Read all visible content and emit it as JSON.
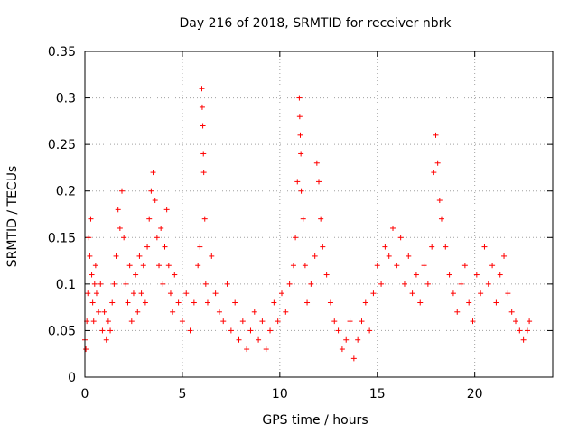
{
  "chart_data": {
    "type": "scatter",
    "title": "Day 216 of 2018, SRMTID for receiver nbrk",
    "xlabel": "GPS time / hours",
    "ylabel": "SRMTID / TECUs",
    "xlim": [
      0,
      24
    ],
    "ylim": [
      0,
      0.35
    ],
    "x_ticks": [
      0,
      5,
      10,
      15,
      20
    ],
    "y_ticks": [
      0,
      0.05,
      0.1,
      0.15,
      0.2,
      0.25,
      0.3,
      0.35
    ],
    "x_tick_labels": [
      "0",
      "5",
      "10",
      "15",
      "20"
    ],
    "y_tick_labels": [
      "0",
      "0.05",
      "0.1",
      "0.15",
      "0.2",
      "0.25",
      "0.3",
      "0.35"
    ],
    "grid": true,
    "marker": "plus",
    "color": "#ff0000",
    "series": [
      {
        "name": "SRMTID",
        "points": [
          [
            0.0,
            0.04
          ],
          [
            0.05,
            0.03
          ],
          [
            0.1,
            0.06
          ],
          [
            0.15,
            0.09
          ],
          [
            0.2,
            0.15
          ],
          [
            0.25,
            0.13
          ],
          [
            0.3,
            0.17
          ],
          [
            0.35,
            0.11
          ],
          [
            0.4,
            0.08
          ],
          [
            0.45,
            0.06
          ],
          [
            0.5,
            0.1
          ],
          [
            0.55,
            0.12
          ],
          [
            0.6,
            0.09
          ],
          [
            0.7,
            0.07
          ],
          [
            0.8,
            0.1
          ],
          [
            0.9,
            0.05
          ],
          [
            1.0,
            0.07
          ],
          [
            1.1,
            0.04
          ],
          [
            1.2,
            0.06
          ],
          [
            1.3,
            0.05
          ],
          [
            1.4,
            0.08
          ],
          [
            1.5,
            0.1
          ],
          [
            1.6,
            0.13
          ],
          [
            1.7,
            0.18
          ],
          [
            1.8,
            0.16
          ],
          [
            1.9,
            0.2
          ],
          [
            2.0,
            0.15
          ],
          [
            2.1,
            0.1
          ],
          [
            2.2,
            0.08
          ],
          [
            2.3,
            0.12
          ],
          [
            2.4,
            0.06
          ],
          [
            2.5,
            0.09
          ],
          [
            2.6,
            0.11
          ],
          [
            2.7,
            0.07
          ],
          [
            2.8,
            0.13
          ],
          [
            2.9,
            0.09
          ],
          [
            3.0,
            0.12
          ],
          [
            3.1,
            0.08
          ],
          [
            3.2,
            0.14
          ],
          [
            3.3,
            0.17
          ],
          [
            3.4,
            0.2
          ],
          [
            3.5,
            0.22
          ],
          [
            3.6,
            0.19
          ],
          [
            3.7,
            0.15
          ],
          [
            3.8,
            0.12
          ],
          [
            3.9,
            0.16
          ],
          [
            4.0,
            0.1
          ],
          [
            4.1,
            0.14
          ],
          [
            4.2,
            0.18
          ],
          [
            4.3,
            0.12
          ],
          [
            4.4,
            0.09
          ],
          [
            4.5,
            0.07
          ],
          [
            4.6,
            0.11
          ],
          [
            4.8,
            0.08
          ],
          [
            5.0,
            0.06
          ],
          [
            5.2,
            0.09
          ],
          [
            5.4,
            0.05
          ],
          [
            5.6,
            0.08
          ],
          [
            5.8,
            0.12
          ],
          [
            5.9,
            0.14
          ],
          [
            6.0,
            0.31
          ],
          [
            6.02,
            0.29
          ],
          [
            6.05,
            0.27
          ],
          [
            6.08,
            0.24
          ],
          [
            6.1,
            0.22
          ],
          [
            6.15,
            0.17
          ],
          [
            6.2,
            0.1
          ],
          [
            6.3,
            0.08
          ],
          [
            6.5,
            0.13
          ],
          [
            6.7,
            0.09
          ],
          [
            6.9,
            0.07
          ],
          [
            7.1,
            0.06
          ],
          [
            7.3,
            0.1
          ],
          [
            7.5,
            0.05
          ],
          [
            7.7,
            0.08
          ],
          [
            7.9,
            0.04
          ],
          [
            8.1,
            0.06
          ],
          [
            8.3,
            0.03
          ],
          [
            8.5,
            0.05
          ],
          [
            8.7,
            0.07
          ],
          [
            8.9,
            0.04
          ],
          [
            9.1,
            0.06
          ],
          [
            9.3,
            0.03
          ],
          [
            9.5,
            0.05
          ],
          [
            9.7,
            0.08
          ],
          [
            9.9,
            0.06
          ],
          [
            10.1,
            0.09
          ],
          [
            10.3,
            0.07
          ],
          [
            10.5,
            0.1
          ],
          [
            10.7,
            0.12
          ],
          [
            10.8,
            0.15
          ],
          [
            10.9,
            0.21
          ],
          [
            11.0,
            0.3
          ],
          [
            11.02,
            0.28
          ],
          [
            11.05,
            0.26
          ],
          [
            11.08,
            0.24
          ],
          [
            11.1,
            0.2
          ],
          [
            11.2,
            0.17
          ],
          [
            11.3,
            0.12
          ],
          [
            11.4,
            0.08
          ],
          [
            11.6,
            0.1
          ],
          [
            11.8,
            0.13
          ],
          [
            11.9,
            0.23
          ],
          [
            12.0,
            0.21
          ],
          [
            12.1,
            0.17
          ],
          [
            12.2,
            0.14
          ],
          [
            12.4,
            0.11
          ],
          [
            12.6,
            0.08
          ],
          [
            12.8,
            0.06
          ],
          [
            13.0,
            0.05
          ],
          [
            13.2,
            0.03
          ],
          [
            13.4,
            0.04
          ],
          [
            13.6,
            0.06
          ],
          [
            13.8,
            0.02
          ],
          [
            14.0,
            0.04
          ],
          [
            14.2,
            0.06
          ],
          [
            14.4,
            0.08
          ],
          [
            14.6,
            0.05
          ],
          [
            14.8,
            0.09
          ],
          [
            15.0,
            0.12
          ],
          [
            15.2,
            0.1
          ],
          [
            15.4,
            0.14
          ],
          [
            15.6,
            0.13
          ],
          [
            15.8,
            0.16
          ],
          [
            16.0,
            0.12
          ],
          [
            16.2,
            0.15
          ],
          [
            16.4,
            0.1
          ],
          [
            16.6,
            0.13
          ],
          [
            16.8,
            0.09
          ],
          [
            17.0,
            0.11
          ],
          [
            17.2,
            0.08
          ],
          [
            17.4,
            0.12
          ],
          [
            17.6,
            0.1
          ],
          [
            17.8,
            0.14
          ],
          [
            17.9,
            0.22
          ],
          [
            18.0,
            0.26
          ],
          [
            18.1,
            0.23
          ],
          [
            18.2,
            0.19
          ],
          [
            18.3,
            0.17
          ],
          [
            18.5,
            0.14
          ],
          [
            18.7,
            0.11
          ],
          [
            18.9,
            0.09
          ],
          [
            19.1,
            0.07
          ],
          [
            19.3,
            0.1
          ],
          [
            19.5,
            0.12
          ],
          [
            19.7,
            0.08
          ],
          [
            19.9,
            0.06
          ],
          [
            20.1,
            0.11
          ],
          [
            20.3,
            0.09
          ],
          [
            20.5,
            0.14
          ],
          [
            20.7,
            0.1
          ],
          [
            20.9,
            0.12
          ],
          [
            21.1,
            0.08
          ],
          [
            21.3,
            0.11
          ],
          [
            21.5,
            0.13
          ],
          [
            21.7,
            0.09
          ],
          [
            21.9,
            0.07
          ],
          [
            22.1,
            0.06
          ],
          [
            22.3,
            0.05
          ],
          [
            22.5,
            0.04
          ],
          [
            22.7,
            0.05
          ],
          [
            22.8,
            0.06
          ]
        ]
      }
    ]
  }
}
